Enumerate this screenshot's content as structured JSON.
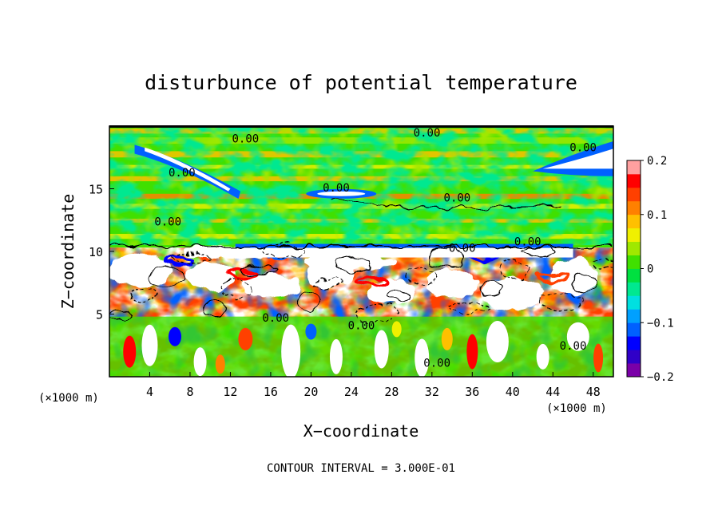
{
  "chart_data": {
    "type": "heatmap",
    "title": "disturbunce of potential temperature",
    "xlabel": "X−coordinate",
    "ylabel": "Z−coordinate",
    "x_unit": "(×1000 m)",
    "y_unit": "(×1000 m)",
    "xlim": [
      0,
      50
    ],
    "ylim": [
      0,
      20
    ],
    "x_ticks": [
      4,
      8,
      12,
      16,
      20,
      24,
      28,
      32,
      36,
      40,
      44,
      48
    ],
    "y_ticks": [
      5,
      10,
      15
    ],
    "colorbar": {
      "range": [
        -0.2,
        0.2
      ],
      "tick_values": [
        0.2,
        0.1,
        0,
        -0.1,
        -0.2
      ],
      "tick_labels": [
        "0.2",
        "0.1",
        "0",
        "−0.1",
        "−0.2"
      ],
      "colors": [
        "#7a00a8",
        "#3000c8",
        "#0000ff",
        "#0060ff",
        "#00a0ff",
        "#00e0e0",
        "#00e890",
        "#00e040",
        "#40e000",
        "#a0e800",
        "#f0f000",
        "#ffc000",
        "#ff8000",
        "#ff4000",
        "#ff0000",
        "#ffa0a0"
      ]
    },
    "contour_interval_text": "CONTOUR INTERVAL = 3.000E-01",
    "contour_labels": [
      {
        "text": "0.00",
        "x": 31.5,
        "z": 19.5
      },
      {
        "text": "0.00",
        "x": 13.5,
        "z": 19.0
      },
      {
        "text": "0.00",
        "x": 7.2,
        "z": 16.3
      },
      {
        "text": "0.00",
        "x": 47.0,
        "z": 18.3
      },
      {
        "text": "0.00",
        "x": 22.5,
        "z": 15.1
      },
      {
        "text": "0.00",
        "x": 34.5,
        "z": 14.3
      },
      {
        "text": "0.00",
        "x": 5.8,
        "z": 12.4
      },
      {
        "text": "0.00",
        "x": 41.5,
        "z": 10.8
      },
      {
        "text": "0.00",
        "x": 35.0,
        "z": 10.3
      },
      {
        "text": "0.00",
        "x": 16.5,
        "z": 4.7
      },
      {
        "text": "0.00",
        "x": 25.0,
        "z": 4.1
      },
      {
        "text": "0.00",
        "x": 46.0,
        "z": 2.5
      },
      {
        "text": "0.00",
        "x": 32.5,
        "z": 1.1
      }
    ],
    "grid": false,
    "legend": "colorbar-right"
  }
}
